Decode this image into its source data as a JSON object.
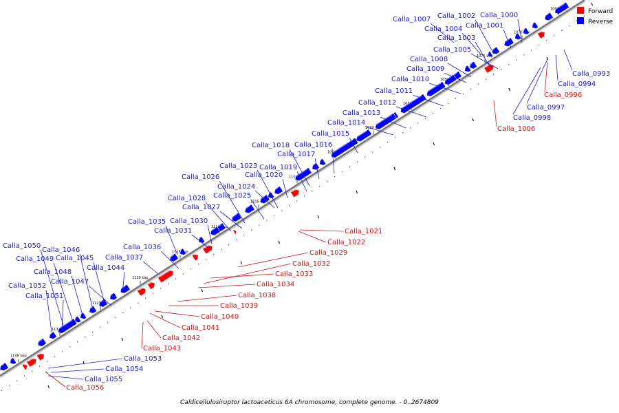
{
  "caption": "Caldicellulosiruptor lactoaceticus 6A chromosome, complete genome. - 0..2674809",
  "legend": [
    {
      "label": "Forward",
      "color": "#ff0000"
    },
    {
      "label": "Reverse",
      "color": "#0000ff"
    }
  ],
  "colors": {
    "forward": "#ff0000",
    "reverse": "#0000ff",
    "forward_label": "#cc1111",
    "reverse_label": "#1a1acc"
  },
  "ticks": [
    "1065 kbp",
    "1070 kbp",
    "1075 kbp",
    "1080 kbp",
    "1085 kbp",
    "1090 kbp",
    "1095 kbp",
    "1100 kbp",
    "1105 kbp",
    "1110 kbp",
    "1115 kbp",
    "1120 kbp",
    "1125 kbp",
    "1130 kbp",
    "1135 kbp"
  ],
  "reverse_labels": [
    "Calla_1007",
    "Calla_1002",
    "Calla_1000",
    "Calla_1004",
    "Calla_1001",
    "Calla_1003",
    "Calla_1005",
    "Calla_1008",
    "Calla_1009",
    "Calla_1010",
    "Calla_1011",
    "Calla_1012",
    "Calla_1013",
    "Calla_1014",
    "Calla_1015",
    "Calla_1018",
    "Calla_1016",
    "Calla_1017",
    "Calla_1023",
    "Calla_1019",
    "Calla_1026",
    "Calla_1020",
    "Calla_1024",
    "Calla_1025",
    "Calla_1028",
    "Calla_1027",
    "Calla_1035",
    "Calla_1030",
    "Calla_1031",
    "Calla_1050",
    "Calla_1036",
    "Calla_1046",
    "Calla_1049",
    "Calla_1045",
    "Calla_1037",
    "Calla_1044",
    "Calla_1048",
    "Calla_1047",
    "Calla_1052",
    "Calla_1051",
    "Calla_0993",
    "Calla_0994",
    "Calla_0997",
    "Calla_0998",
    "Calla_1053",
    "Calla_1054",
    "Calla_1055"
  ],
  "forward_labels": [
    "Calla_0996",
    "Calla_1006",
    "Calla_1021",
    "Calla_1022",
    "Calla_1029",
    "Calla_1032",
    "Calla_1033",
    "Calla_1034",
    "Calla_1038",
    "Calla_1039",
    "Calla_1040",
    "Calla_1041",
    "Calla_1042",
    "Calla_1043",
    "Calla_1056"
  ]
}
